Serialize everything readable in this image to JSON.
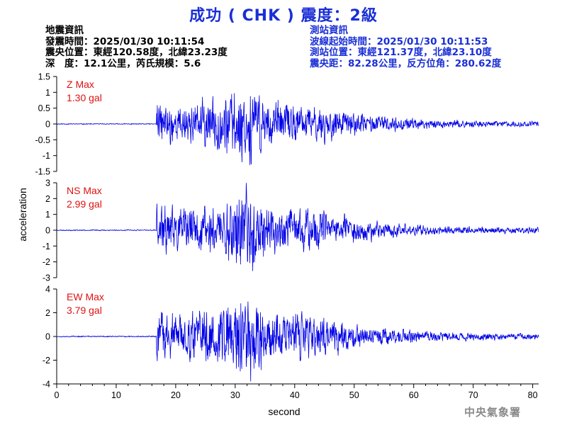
{
  "title": "成功 ( CHK ) 震度：2級",
  "info_left": {
    "heading": "地震資訊",
    "time_line": "發震時間：2025/01/30 10:11:54",
    "location_line": "震央位置：東經120.58度，北緯23.23度",
    "depth_line": "深　度：12.1公里，芮氏規模：5.6"
  },
  "info_right": {
    "heading": "測站資訊",
    "wave_time_line": "波線起始時間：2025/01/30 10:11:53",
    "station_line": "測站位置：東經121.37度，北緯23.10度",
    "distance_line": "震央距：82.28公里，反方位角：280.62度"
  },
  "agency": "中央氣象署",
  "colors": {
    "title": "#1a2fd6",
    "trace": "#0000e6",
    "max_label": "#e01010",
    "info_right": "#1a2fd6"
  },
  "chart_data": {
    "type": "line",
    "xlabel": "second",
    "ylabel": "acceleration",
    "xlim": [
      0,
      81
    ],
    "xticks": [
      0,
      10,
      20,
      30,
      40,
      50,
      60,
      70,
      80
    ],
    "xtick_labels": [
      "0",
      "10",
      "20",
      "30",
      "40",
      "50",
      "60",
      "70",
      "80"
    ],
    "panels": [
      {
        "name": "Z",
        "max_title": "Z Max",
        "max_value": "1.30 gal",
        "ylim": [
          -1.5,
          1.5
        ],
        "yticks": [
          -1.5,
          -1,
          -0.5,
          0,
          0.5,
          1,
          1.5
        ],
        "ytick_labels": [
          "-1.5",
          "-1",
          "-0.5",
          "0",
          "0.5",
          "1",
          "1.5"
        ],
        "onset": 16.8,
        "peak_time": 31.5,
        "amplitude": 1.3,
        "seed": 11
      },
      {
        "name": "NS",
        "max_title": "NS Max",
        "max_value": "2.99 gal",
        "ylim": [
          -3,
          3
        ],
        "yticks": [
          -3,
          -2,
          -1,
          0,
          1,
          2,
          3
        ],
        "ytick_labels": [
          "-3",
          "-2",
          "-1",
          "0",
          "1",
          "2",
          "3"
        ],
        "onset": 16.8,
        "peak_time": 31.5,
        "amplitude": 2.99,
        "seed": 23
      },
      {
        "name": "EW",
        "max_title": "EW Max",
        "max_value": "3.79 gal",
        "ylim": [
          -4,
          4
        ],
        "yticks": [
          -4,
          -2,
          0,
          2,
          4
        ],
        "ytick_labels": [
          "-4",
          "-2",
          "0",
          "2",
          "4"
        ],
        "onset": 16.8,
        "peak_time": 31.5,
        "amplitude": 3.79,
        "seed": 37
      }
    ]
  }
}
